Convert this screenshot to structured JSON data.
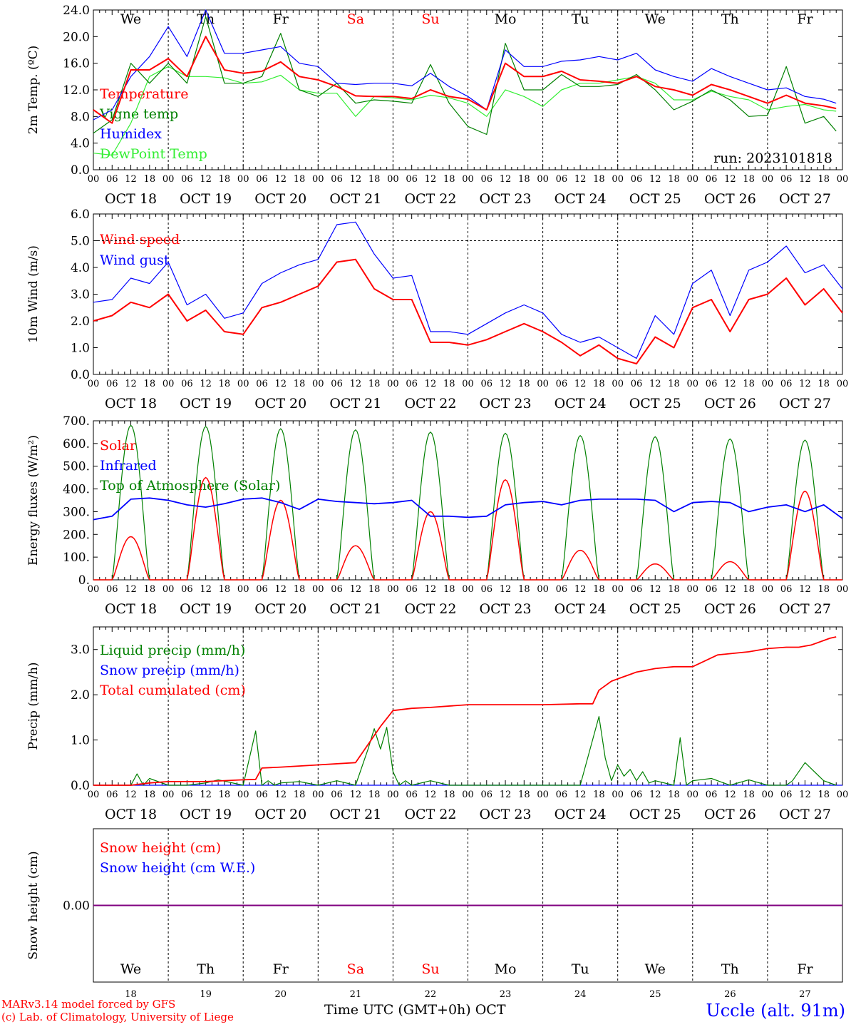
{
  "run_label": "run: 2023101818",
  "footer": {
    "model_line1": "MARv3.14 model forced by GFS",
    "model_line2": "(c) Lab. of Climatology, University of Liege",
    "xaxis_title": "Time UTC (GMT+0h) OCT",
    "station": "Uccle (alt. 91m)"
  },
  "days": {
    "weekday_labels": [
      "We",
      "Th",
      "Fr",
      "Sa",
      "Su",
      "Mo",
      "Tu",
      "We",
      "Th",
      "Fr"
    ],
    "weekend_flags": [
      false,
      false,
      false,
      true,
      true,
      false,
      false,
      false,
      false,
      false
    ],
    "date_labels": [
      "OCT 18",
      "OCT 19",
      "OCT 20",
      "OCT 21",
      "OCT 22",
      "OCT 23",
      "OCT 24",
      "OCT 25",
      "OCT 26",
      "OCT 27"
    ],
    "day_numbers": [
      "18",
      "19",
      "20",
      "21",
      "22",
      "23",
      "24",
      "25",
      "26",
      "27"
    ],
    "hour_ticks": [
      "00",
      "06",
      "12",
      "18"
    ],
    "final_hour_tick": "00"
  },
  "colors": {
    "red": "#ff0000",
    "dark_green": "#008000",
    "blue": "#0000ff",
    "light_green": "#33ee33",
    "purple": "#800080",
    "grid": "#000000"
  },
  "chart_data": [
    {
      "type": "line",
      "ylabel": "2m Temp. (ºC)",
      "ylim": [
        0,
        24
      ],
      "yticks": [
        "0.0",
        "4.0",
        "8.0",
        "12.0",
        "16.0",
        "20.0",
        "24.0"
      ],
      "x_unit": "hours since 2023-10-18 00 UTC",
      "xlim": [
        0,
        240
      ],
      "series": [
        {
          "name": "Temperature",
          "color": "#ff0000",
          "x": [
            0,
            6,
            12,
            18,
            24,
            30,
            36,
            42,
            48,
            54,
            60,
            66,
            72,
            78,
            84,
            90,
            96,
            102,
            108,
            114,
            120,
            126,
            132,
            138,
            144,
            150,
            156,
            162,
            168,
            174,
            180,
            186,
            192,
            198,
            204,
            210,
            216,
            222,
            228,
            234,
            238
          ],
          "y": [
            9.0,
            7.0,
            15.0,
            15.0,
            16.7,
            14.0,
            20.0,
            15.0,
            14.5,
            14.8,
            16.2,
            14.0,
            13.5,
            12.5,
            11.1,
            11.0,
            11.0,
            10.7,
            12.0,
            11.0,
            10.6,
            9.0,
            16.0,
            14.0,
            14.0,
            14.8,
            13.5,
            13.3,
            13.0,
            14.0,
            12.5,
            12.0,
            11.2,
            12.8,
            12.0,
            11.0,
            10.0,
            11.2,
            10.0,
            9.6,
            9.2
          ]
        },
        {
          "name": "Vigne temp",
          "color": "#008000",
          "x": [
            0,
            6,
            12,
            18,
            24,
            30,
            36,
            42,
            48,
            54,
            60,
            66,
            72,
            78,
            84,
            90,
            96,
            102,
            108,
            114,
            120,
            126,
            132,
            138,
            144,
            150,
            156,
            162,
            168,
            174,
            180,
            186,
            192,
            198,
            204,
            210,
            216,
            222,
            228,
            234,
            238
          ],
          "y": [
            5.5,
            7.5,
            16.0,
            13.0,
            16.0,
            13.0,
            23.0,
            13.0,
            13.0,
            14.0,
            20.5,
            12.0,
            11.0,
            13.0,
            10.0,
            10.5,
            10.3,
            10.0,
            15.8,
            10.0,
            6.5,
            5.3,
            19.0,
            12.0,
            12.0,
            14.3,
            12.5,
            12.5,
            12.8,
            14.3,
            12.0,
            9.0,
            10.3,
            12.0,
            10.5,
            8.0,
            8.2,
            15.5,
            7.0,
            8.0,
            5.8
          ]
        },
        {
          "name": "Humidex",
          "color": "#0000ff",
          "x": [
            0,
            6,
            12,
            18,
            24,
            30,
            36,
            42,
            48,
            54,
            60,
            66,
            72,
            78,
            84,
            90,
            96,
            102,
            108,
            114,
            120,
            126,
            132,
            138,
            144,
            150,
            156,
            162,
            168,
            174,
            180,
            186,
            192,
            198,
            204,
            210,
            216,
            222,
            228,
            234,
            238
          ],
          "y": [
            7.5,
            9.0,
            14.0,
            17.0,
            21.5,
            17.0,
            24.0,
            17.5,
            17.5,
            18.0,
            18.5,
            16.0,
            15.5,
            13.0,
            12.8,
            13.0,
            13.0,
            12.6,
            14.5,
            12.5,
            11.0,
            9.0,
            18.0,
            15.5,
            15.5,
            16.3,
            16.5,
            17.0,
            16.5,
            17.5,
            15.0,
            14.0,
            13.3,
            15.2,
            14.0,
            13.0,
            12.0,
            12.3,
            11.0,
            10.6,
            10.0
          ]
        },
        {
          "name": "DewPoint Temp",
          "color": "#33ee33",
          "x": [
            0,
            6,
            12,
            18,
            24,
            30,
            36,
            42,
            48,
            54,
            60,
            66,
            72,
            78,
            84,
            90,
            96,
            102,
            108,
            114,
            120,
            126,
            132,
            138,
            144,
            150,
            156,
            162,
            168,
            174,
            180,
            186,
            192,
            198,
            204,
            210,
            216,
            222,
            228,
            234,
            238
          ],
          "y": [
            2.5,
            2.2,
            7.0,
            14.0,
            15.5,
            14.0,
            14.0,
            13.8,
            13.0,
            13.2,
            14.2,
            12.0,
            11.5,
            11.5,
            8.0,
            11.0,
            10.8,
            10.5,
            11.2,
            10.8,
            10.0,
            8.0,
            12.0,
            11.0,
            9.5,
            12.0,
            13.0,
            13.0,
            13.5,
            14.0,
            13.0,
            10.5,
            10.5,
            11.8,
            11.0,
            10.5,
            9.0,
            9.5,
            9.8,
            9.0,
            8.8
          ]
        }
      ]
    },
    {
      "type": "line",
      "ylabel": "10m Wind (m/s)",
      "ylim": [
        0,
        6
      ],
      "yticks": [
        "0.0",
        "1.0",
        "2.0",
        "3.0",
        "4.0",
        "5.0",
        "6.0"
      ],
      "reference_line": 5.0,
      "x_unit": "hours since 2023-10-18 00 UTC",
      "xlim": [
        0,
        240
      ],
      "series": [
        {
          "name": "Wind speed",
          "color": "#ff0000",
          "x": [
            0,
            6,
            12,
            18,
            24,
            30,
            36,
            42,
            48,
            54,
            60,
            66,
            72,
            78,
            84,
            90,
            96,
            102,
            108,
            114,
            120,
            126,
            132,
            138,
            144,
            150,
            156,
            162,
            168,
            174,
            180,
            186,
            192,
            198,
            204,
            210,
            216,
            222,
            228,
            234,
            240
          ],
          "y": [
            2.0,
            2.2,
            2.7,
            2.5,
            3.0,
            2.0,
            2.4,
            1.6,
            1.5,
            2.5,
            2.7,
            3.0,
            3.3,
            4.2,
            4.3,
            3.2,
            2.8,
            2.8,
            1.2,
            1.2,
            1.1,
            1.3,
            1.6,
            1.9,
            1.6,
            1.2,
            0.7,
            1.1,
            0.6,
            0.4,
            1.4,
            1.0,
            2.5,
            2.8,
            1.6,
            2.8,
            3.0,
            3.6,
            2.6,
            3.2,
            2.3
          ]
        },
        {
          "name": "Wind gust",
          "color": "#0000ff",
          "x": [
            0,
            6,
            12,
            18,
            24,
            30,
            36,
            42,
            48,
            54,
            60,
            66,
            72,
            78,
            84,
            90,
            96,
            102,
            108,
            114,
            120,
            126,
            132,
            138,
            144,
            150,
            156,
            162,
            168,
            174,
            180,
            186,
            192,
            198,
            204,
            210,
            216,
            222,
            228,
            234,
            240
          ],
          "y": [
            2.7,
            2.8,
            3.6,
            3.4,
            4.2,
            2.6,
            3.0,
            2.1,
            2.3,
            3.4,
            3.8,
            4.1,
            4.3,
            5.6,
            5.7,
            4.5,
            3.6,
            3.7,
            1.6,
            1.6,
            1.5,
            1.9,
            2.3,
            2.6,
            2.3,
            1.5,
            1.2,
            1.4,
            1.0,
            0.6,
            2.2,
            1.5,
            3.4,
            3.9,
            2.2,
            3.9,
            4.2,
            4.8,
            3.8,
            4.1,
            3.2
          ]
        }
      ]
    },
    {
      "type": "line",
      "ylabel": "Energy fluxes (W/m²)",
      "ylim": [
        0,
        700
      ],
      "yticks": [
        "0.",
        "100.",
        "200.",
        "300.",
        "400.",
        "500.",
        "600.",
        "700."
      ],
      "x_unit": "hours since 2023-10-18 00 UTC",
      "xlim": [
        0,
        240
      ],
      "series": [
        {
          "name": "Solar",
          "color": "#ff0000",
          "type": "diurnal",
          "daily_peak": [
            190,
            450,
            350,
            150,
            300,
            440,
            130,
            70,
            80,
            390
          ]
        },
        {
          "name": "Infrared",
          "color": "#0000ff",
          "x": [
            0,
            6,
            12,
            18,
            24,
            30,
            36,
            42,
            48,
            54,
            60,
            66,
            72,
            78,
            84,
            90,
            96,
            102,
            108,
            114,
            120,
            126,
            132,
            138,
            144,
            150,
            156,
            162,
            168,
            174,
            180,
            186,
            192,
            198,
            204,
            210,
            216,
            222,
            228,
            234,
            240
          ],
          "y": [
            265,
            280,
            355,
            360,
            350,
            330,
            320,
            335,
            355,
            360,
            340,
            310,
            355,
            345,
            340,
            335,
            340,
            350,
            280,
            280,
            275,
            280,
            330,
            340,
            345,
            330,
            350,
            355,
            355,
            355,
            350,
            300,
            340,
            345,
            340,
            300,
            320,
            330,
            300,
            330,
            270
          ]
        },
        {
          "name": "Top of Atmosphere (Solar)",
          "color": "#008000",
          "type": "diurnal",
          "daily_peak": [
            680,
            675,
            665,
            660,
            650,
            645,
            635,
            630,
            620,
            615
          ]
        }
      ]
    },
    {
      "type": "line",
      "ylabel": "Precip (mm/h)",
      "ylim": [
        0,
        3.5
      ],
      "yticks": [
        "0.0",
        "1.0",
        "2.0",
        "3.0"
      ],
      "x_unit": "hours since 2023-10-18 00 UTC",
      "xlim": [
        0,
        240
      ],
      "series": [
        {
          "name": "Liquid precip (mm/h)",
          "color": "#008000",
          "x": [
            0,
            12,
            14,
            16,
            18,
            24,
            30,
            36,
            40,
            48,
            52,
            54,
            56,
            58,
            60,
            66,
            72,
            78,
            84,
            88,
            90,
            92,
            94,
            96,
            98,
            100,
            102,
            108,
            114,
            120,
            132,
            144,
            156,
            162,
            164,
            166,
            168,
            170,
            172,
            174,
            176,
            178,
            180,
            186,
            188,
            190,
            192,
            198,
            204,
            210,
            216,
            222,
            224,
            228,
            234,
            238
          ],
          "y": [
            0,
            0,
            0.25,
            0,
            0.15,
            0,
            0,
            0.05,
            0.12,
            0,
            1.2,
            0,
            0.1,
            0,
            0.05,
            0.08,
            0,
            0.1,
            0,
            0.8,
            1.25,
            0.8,
            1.28,
            0.3,
            0,
            0.1,
            0,
            0.1,
            0,
            0,
            0,
            0,
            0,
            1.52,
            0.6,
            0.1,
            0.45,
            0.2,
            0.35,
            0.1,
            0.3,
            0.05,
            0.1,
            0,
            1.05,
            0,
            0.1,
            0.15,
            0,
            0.12,
            0,
            0,
            0.1,
            0.5,
            0.1,
            0
          ]
        },
        {
          "name": "Snow precip (mm/h)",
          "color": "#0000ff",
          "x": [
            0,
            240
          ],
          "y": [
            0,
            0
          ]
        },
        {
          "name": "Total cumulated (cm)",
          "color": "#ff0000",
          "x": [
            0,
            12,
            18,
            24,
            36,
            48,
            52,
            54,
            60,
            72,
            84,
            88,
            92,
            96,
            102,
            108,
            120,
            132,
            144,
            156,
            160,
            162,
            166,
            168,
            174,
            180,
            186,
            190,
            192,
            200,
            210,
            216,
            222,
            226,
            230,
            236,
            238
          ],
          "y": [
            0,
            0,
            0.05,
            0.08,
            0.08,
            0.12,
            0.13,
            0.38,
            0.4,
            0.45,
            0.5,
            0.9,
            1.3,
            1.65,
            1.7,
            1.72,
            1.78,
            1.78,
            1.78,
            1.8,
            1.8,
            2.1,
            2.3,
            2.35,
            2.5,
            2.58,
            2.62,
            2.62,
            2.62,
            2.88,
            2.95,
            3.02,
            3.05,
            3.05,
            3.1,
            3.25,
            3.28
          ]
        }
      ]
    },
    {
      "type": "line",
      "ylabel": "Snow height (cm)",
      "yticks": [
        "0.00"
      ],
      "x_unit": "hours since 2023-10-18 00 UTC",
      "xlim": [
        0,
        240
      ],
      "series": [
        {
          "name": "Snow height (cm)",
          "color": "#ff0000",
          "x": [
            0,
            240
          ],
          "y": [
            0,
            0
          ]
        },
        {
          "name": "Snow height (cm W.E.)",
          "color": "#0000ff",
          "x": [
            0,
            240
          ],
          "y": [
            0,
            0
          ]
        }
      ]
    }
  ]
}
